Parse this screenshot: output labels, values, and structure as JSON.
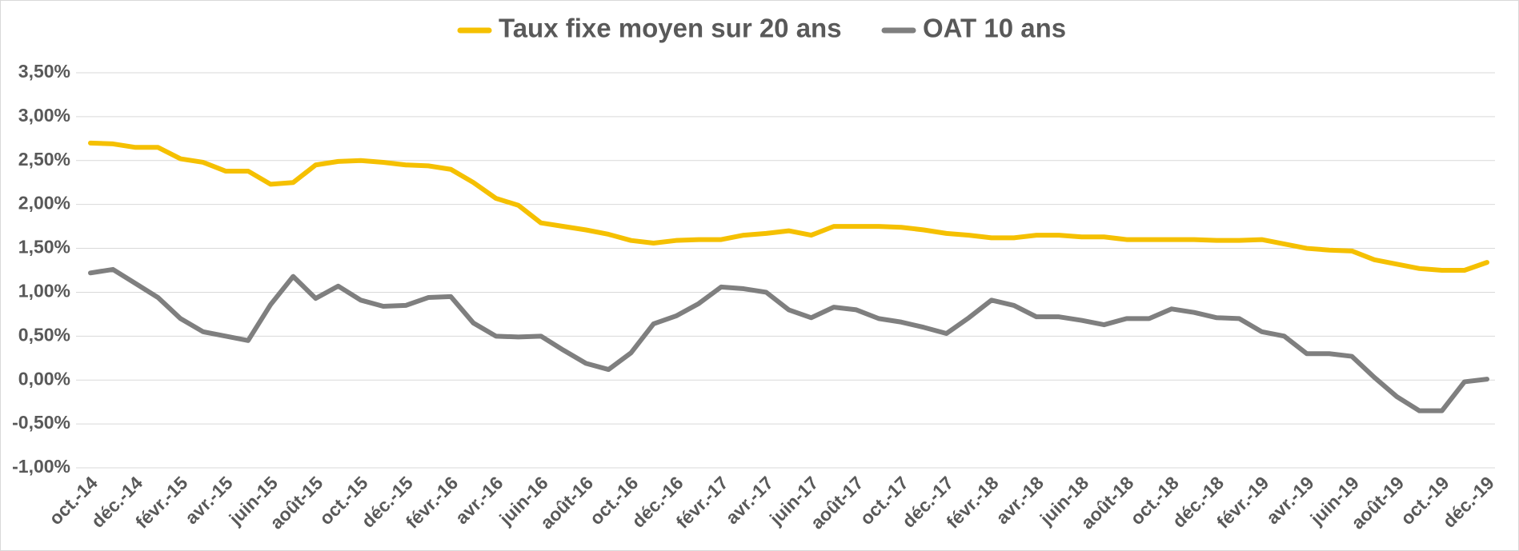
{
  "chart_data": {
    "type": "line",
    "categories": [
      "oct.-14",
      null,
      "déc.-14",
      null,
      "févr.-15",
      null,
      "avr.-15",
      null,
      "juin-15",
      null,
      "août-15",
      null,
      "oct.-15",
      null,
      "déc.-15",
      null,
      "févr.-16",
      null,
      "avr.-16",
      null,
      "juin-16",
      null,
      "août-16",
      null,
      "oct.-16",
      null,
      "déc.-16",
      null,
      "févr.-17",
      null,
      "avr.-17",
      null,
      "juin-17",
      null,
      "août-17",
      null,
      "oct.-17",
      null,
      "déc.-17",
      null,
      "févr.-18",
      null,
      "avr.-18",
      null,
      "juin-18",
      null,
      "août-18",
      null,
      "oct.-18",
      null,
      "déc.-18",
      null,
      "févr.-19",
      null,
      "avr.-19",
      null,
      "juin-19",
      null,
      "août-19",
      null,
      "oct.-19",
      null,
      "déc.-19"
    ],
    "series": [
      {
        "name": "Taux fixe moyen sur 20 ans",
        "color": "#f5c000",
        "values": [
          2.7,
          2.69,
          2.65,
          2.65,
          2.52,
          2.48,
          2.38,
          2.38,
          2.23,
          2.25,
          2.45,
          2.49,
          2.5,
          2.48,
          2.45,
          2.44,
          2.4,
          2.25,
          2.07,
          1.99,
          1.79,
          1.75,
          1.71,
          1.66,
          1.59,
          1.56,
          1.59,
          1.6,
          1.6,
          1.65,
          1.67,
          1.7,
          1.65,
          1.75,
          1.75,
          1.75,
          1.74,
          1.71,
          1.67,
          1.65,
          1.62,
          1.62,
          1.65,
          1.65,
          1.63,
          1.63,
          1.6,
          1.6,
          1.6,
          1.6,
          1.59,
          1.59,
          1.6,
          1.55,
          1.5,
          1.48,
          1.47,
          1.37,
          1.32,
          1.27,
          1.25,
          1.25,
          1.34
        ]
      },
      {
        "name": "OAT 10 ans",
        "color": "#7f7f7f",
        "values": [
          1.22,
          1.26,
          1.1,
          0.94,
          0.7,
          0.55,
          0.5,
          0.45,
          0.86,
          1.18,
          0.93,
          1.07,
          0.91,
          0.84,
          0.85,
          0.94,
          0.95,
          0.65,
          0.5,
          0.49,
          0.5,
          0.34,
          0.19,
          0.12,
          0.31,
          0.64,
          0.73,
          0.87,
          1.06,
          1.04,
          1.0,
          0.8,
          0.71,
          0.83,
          0.8,
          0.7,
          0.66,
          0.6,
          0.53,
          0.71,
          0.91,
          0.85,
          0.72,
          0.72,
          0.68,
          0.63,
          0.7,
          0.7,
          0.81,
          0.77,
          0.71,
          0.7,
          0.55,
          0.5,
          0.3,
          0.3,
          0.27,
          0.03,
          -0.19,
          -0.35,
          -0.35,
          -0.02,
          0.01
        ]
      }
    ],
    "ylim": [
      -1,
      3.5
    ],
    "yticks": [
      {
        "value": -1,
        "label": "-1,00%"
      },
      {
        "value": -0.5,
        "label": "-0,50%"
      },
      {
        "value": 0,
        "label": "0,00%"
      },
      {
        "value": 0.5,
        "label": "0,50%"
      },
      {
        "value": 1,
        "label": "1,00%"
      },
      {
        "value": 1.5,
        "label": "1,50%"
      },
      {
        "value": 2,
        "label": "2,00%"
      },
      {
        "value": 2.5,
        "label": "2,50%"
      },
      {
        "value": 3,
        "label": "3,00%"
      },
      {
        "value": 3.5,
        "label": "3,50%"
      }
    ],
    "grid": true,
    "legend": "top"
  }
}
